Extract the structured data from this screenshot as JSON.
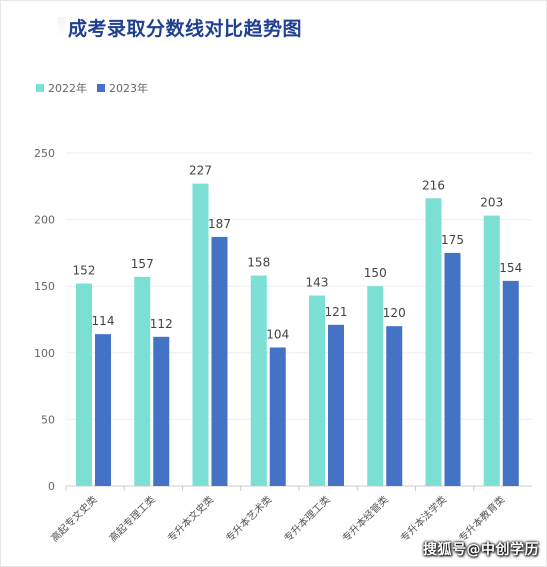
{
  "title": "成考录取分数线对比趋势图",
  "watermark": "搜狐号@中创学历",
  "colors": {
    "series_2022": "#7bdfd4",
    "series_2023": "#4472c4"
  },
  "chart_data": {
    "type": "bar",
    "title": "成考录取分数线对比趋势图",
    "categories": [
      "高起专文史类",
      "高起专理工类",
      "专升本文史类",
      "专升本艺术类",
      "专升本理工类",
      "专升本经管类",
      "专升本法学类",
      "专升本教育类"
    ],
    "series": [
      {
        "name": "2022年",
        "values": [
          152,
          157,
          227,
          158,
          143,
          150,
          216,
          203
        ]
      },
      {
        "name": "2023年",
        "values": [
          114,
          112,
          187,
          104,
          121,
          120,
          175,
          154
        ]
      }
    ],
    "ylim": [
      0,
      250
    ],
    "yticks": [
      0,
      50,
      100,
      150,
      200,
      250
    ],
    "grid": true,
    "legend_position": "top-left"
  }
}
